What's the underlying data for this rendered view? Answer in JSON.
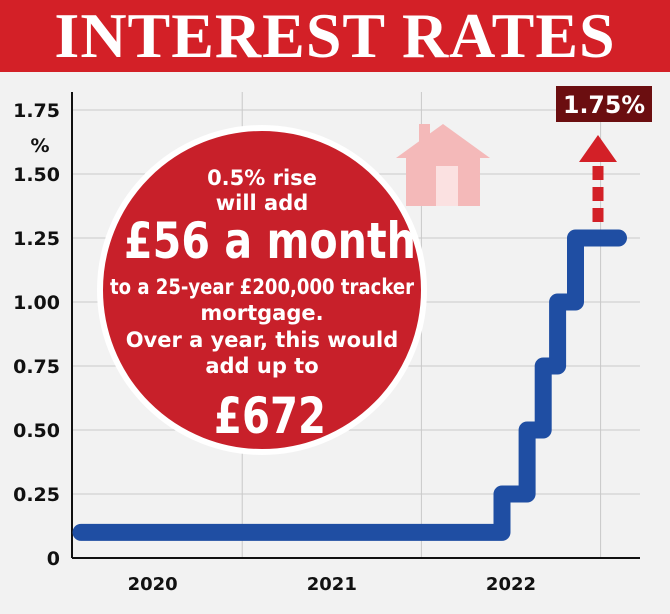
{
  "title": "INTEREST RATES",
  "colors": {
    "banner": "#d32027",
    "line": "#1f4ea3",
    "circle": "#c8202a",
    "end_label_bg": "#6b0e10",
    "arrow": "#d32027",
    "house": "#f4b9b9"
  },
  "icons": {
    "house": "house-icon",
    "arrow": "up-arrow-icon"
  },
  "callout": {
    "line1": "0.5% rise",
    "line2": "will add",
    "big_amount": "£56 a month",
    "line3": "to a 25-year £200,000 tracker",
    "line4": "mortgage.",
    "line5": "Over a year, this would",
    "line6": "add up to",
    "big_total": "£672"
  },
  "end_label": "1.75%",
  "chart_data": {
    "type": "line",
    "ylabel": "%",
    "ylim": [
      0,
      1.75
    ],
    "yticks": [
      "0",
      "0.25",
      "0.50",
      "0.75",
      "1.00",
      "1.25",
      "1.50",
      "1.75"
    ],
    "xticks": [
      "2020",
      "2021",
      "2022"
    ],
    "xlim": [
      2019.55,
      2022.72
    ],
    "grid": true,
    "step": true,
    "series": [
      {
        "x": [
          2019.6,
          2021.95,
          2021.95,
          2022.09,
          2022.09,
          2022.18,
          2022.18,
          2022.26,
          2022.26,
          2022.36,
          2022.36,
          2022.6
        ],
        "y": [
          0.1,
          0.1,
          0.25,
          0.25,
          0.5,
          0.5,
          0.75,
          0.75,
          1.0,
          1.0,
          1.25,
          1.25
        ]
      }
    ],
    "projection": {
      "to": 1.75
    }
  }
}
